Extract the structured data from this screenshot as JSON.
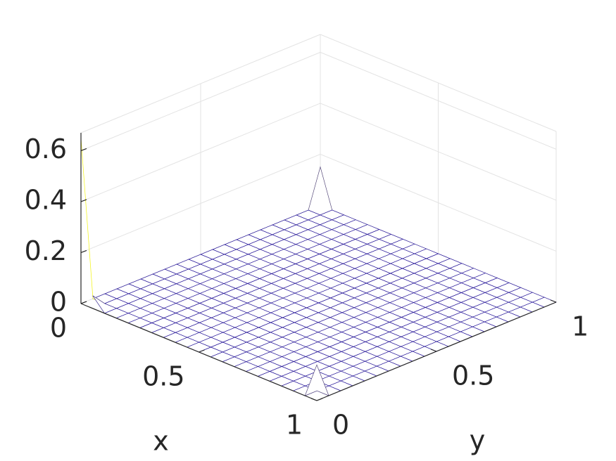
{
  "chart_data": {
    "type": "mesh",
    "x_label": "x",
    "y_label": "y",
    "xlim": [
      0,
      1
    ],
    "ylim": [
      0,
      1
    ],
    "zlim": [
      0,
      0.67
    ],
    "xticks": [
      0,
      0.5,
      1
    ],
    "yticks": [
      0,
      0.5,
      1
    ],
    "zticks": [
      0,
      0.2,
      0.4,
      0.6
    ],
    "grid": true,
    "colormap": [
      "#2a1a9a",
      "#f9fb15"
    ],
    "x": [
      0,
      0.05,
      0.1,
      0.15,
      0.2,
      0.25,
      0.3,
      0.35,
      0.4,
      0.45,
      0.5,
      0.55,
      0.6,
      0.65,
      0.7,
      0.75,
      0.8,
      0.85,
      0.9,
      0.95,
      1
    ],
    "y": [
      0,
      0.05,
      0.1,
      0.15,
      0.2,
      0.25,
      0.3,
      0.35,
      0.4,
      0.45,
      0.5,
      0.55,
      0.6,
      0.65,
      0.7,
      0.75,
      0.8,
      0.85,
      0.9,
      0.95,
      1
    ],
    "z": [
      [
        0.65,
        0,
        0,
        0,
        0,
        0,
        0,
        0,
        0,
        0,
        0,
        0,
        0,
        0,
        0,
        0,
        0,
        0,
        0,
        0,
        0.15
      ],
      [
        0.05,
        0,
        0,
        0,
        0,
        0,
        0,
        0,
        0,
        0,
        0,
        0,
        0,
        0,
        0,
        0,
        0,
        0,
        0,
        0,
        0
      ],
      [
        0,
        0,
        0,
        0,
        0,
        0,
        0,
        0,
        0,
        0,
        0,
        0,
        0,
        0,
        0,
        0,
        0,
        0,
        0,
        0,
        0
      ],
      [
        0,
        0,
        0,
        0,
        0,
        0,
        0,
        0,
        0,
        0,
        0,
        0,
        0,
        0,
        0,
        0,
        0,
        0,
        0,
        0,
        0
      ],
      [
        0,
        0,
        0,
        0,
        0,
        0,
        0,
        0,
        0,
        0,
        0,
        0,
        0,
        0,
        0,
        0,
        0,
        0,
        0,
        0,
        0
      ],
      [
        0,
        0,
        0,
        0,
        0,
        0,
        0,
        0,
        0,
        0,
        0,
        0,
        0,
        0,
        0,
        0,
        0,
        0,
        0,
        0,
        0
      ],
      [
        0,
        0,
        0,
        0,
        0,
        0,
        0,
        0,
        0,
        0,
        0,
        0,
        0,
        0,
        0,
        0,
        0,
        0,
        0,
        0,
        0
      ],
      [
        0,
        0,
        0,
        0,
        0,
        0,
        0,
        0,
        0,
        0,
        0,
        0,
        0,
        0,
        0,
        0,
        0,
        0,
        0,
        0,
        0
      ],
      [
        0,
        0,
        0,
        0,
        0,
        0,
        0,
        0,
        0,
        0,
        0,
        0,
        0,
        0,
        0,
        0,
        0,
        0,
        0,
        0,
        0
      ],
      [
        0,
        0,
        0,
        0,
        0,
        0,
        0,
        0,
        0,
        0,
        0,
        0,
        0,
        0,
        0,
        0,
        0,
        0,
        0,
        0,
        0
      ],
      [
        0,
        0,
        0,
        0,
        0,
        0,
        0,
        0,
        0,
        0,
        0,
        0,
        0,
        0,
        0,
        0,
        0,
        0,
        0,
        0,
        0
      ],
      [
        0,
        0,
        0,
        0,
        0,
        0,
        0,
        0,
        0,
        0,
        0,
        0,
        0,
        0,
        0,
        0,
        0,
        0,
        0,
        0,
        0
      ],
      [
        0,
        0,
        0,
        0,
        0,
        0,
        0,
        0,
        0,
        0,
        0,
        0,
        0,
        0,
        0,
        0,
        0,
        0,
        0,
        0,
        0
      ],
      [
        0,
        0,
        0,
        0,
        0,
        0,
        0,
        0,
        0,
        0,
        0,
        0,
        0,
        0,
        0,
        0,
        0,
        0,
        0,
        0,
        0
      ],
      [
        0,
        0,
        0,
        0,
        0,
        0,
        0,
        0,
        0,
        0,
        0,
        0,
        0,
        0,
        0,
        0,
        0,
        0,
        0,
        0,
        0
      ],
      [
        0,
        0,
        0,
        0,
        0,
        0,
        0,
        0,
        0,
        0,
        0,
        0,
        0,
        0,
        0,
        0,
        0,
        0,
        0,
        0,
        0
      ],
      [
        0,
        0,
        0,
        0,
        0,
        0,
        0,
        0,
        0,
        0,
        0,
        0,
        0,
        0,
        0,
        0,
        0,
        0,
        0,
        0,
        0
      ],
      [
        0,
        0,
        0,
        0,
        0,
        0,
        0,
        0,
        0,
        0,
        0,
        0,
        0,
        0,
        0,
        0,
        0,
        0,
        0,
        0,
        0
      ],
      [
        0,
        0,
        0,
        0,
        0,
        0,
        0,
        0,
        0,
        0,
        0,
        0,
        0,
        0,
        0,
        0,
        0,
        0,
        0,
        0,
        0
      ],
      [
        0,
        0,
        0,
        0,
        0,
        0,
        0,
        0,
        0,
        0,
        0,
        0,
        0,
        0,
        0,
        0,
        0,
        0,
        0,
        0,
        0
      ],
      [
        0.14,
        0,
        0,
        0,
        0,
        0,
        0,
        0,
        0,
        0,
        0,
        0,
        0,
        0,
        0,
        0,
        0,
        0,
        0,
        0,
        0
      ]
    ]
  }
}
